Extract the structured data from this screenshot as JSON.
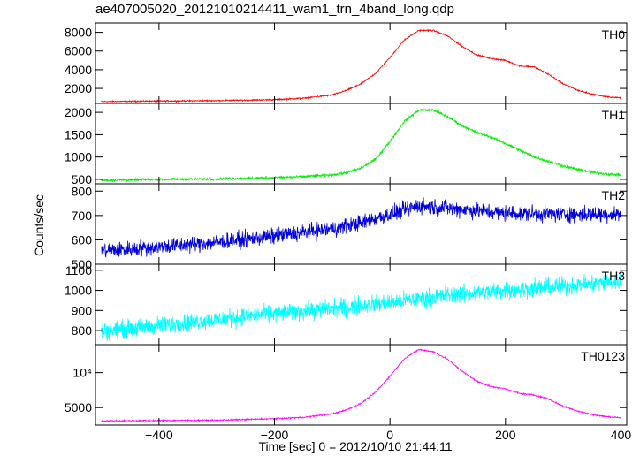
{
  "chart_data": {
    "title": "ae407005020_20121010214411_wam1_trn_4band_long.qdp",
    "xlabel": "Time [sec] 0 = 2012/10/10 21:44:11",
    "ylabel": "Counts/sec",
    "xlim": [
      -510,
      410
    ],
    "xticks": [
      -400,
      -200,
      0,
      200,
      400
    ],
    "grid": false,
    "panels": [
      {
        "type": "line",
        "name": "TH0",
        "color": "#ff0000",
        "ylim": [
          400,
          9000
        ],
        "yticks": [
          2000,
          4000,
          6000,
          8000
        ],
        "ytick_labels": [
          "2000",
          "4000",
          "6000",
          "8000"
        ],
        "noise": 60,
        "x": [
          -500,
          -400,
          -300,
          -200,
          -150,
          -100,
          -75,
          -50,
          -25,
          0,
          25,
          50,
          75,
          100,
          125,
          150,
          175,
          200,
          225,
          250,
          275,
          300,
          325,
          350,
          375,
          400
        ],
        "y": [
          600,
          650,
          700,
          800,
          950,
          1300,
          1800,
          2500,
          3600,
          5300,
          7200,
          8200,
          8200,
          7600,
          6500,
          5600,
          5200,
          5000,
          4400,
          4300,
          3500,
          2500,
          1800,
          1400,
          1100,
          1000
        ]
      },
      {
        "type": "line",
        "name": "TH1",
        "color": "#00ee00",
        "ylim": [
          400,
          2200
        ],
        "yticks": [
          500,
          1000,
          1500,
          2000
        ],
        "ytick_labels": [
          "500",
          "1000",
          "1500",
          "2000"
        ],
        "noise": 25,
        "x": [
          -500,
          -400,
          -300,
          -200,
          -150,
          -100,
          -75,
          -50,
          -25,
          0,
          25,
          50,
          75,
          100,
          125,
          150,
          175,
          200,
          225,
          250,
          275,
          300,
          325,
          350,
          375,
          400
        ],
        "y": [
          480,
          500,
          510,
          540,
          560,
          600,
          650,
          750,
          950,
          1350,
          1800,
          2050,
          2050,
          1900,
          1700,
          1550,
          1450,
          1300,
          1150,
          1000,
          900,
          800,
          720,
          660,
          620,
          600
        ]
      },
      {
        "type": "line",
        "name": "TH2",
        "color": "#0000dd",
        "ylim": [
          500,
          830
        ],
        "yticks": [
          500,
          600,
          700,
          800
        ],
        "ytick_labels": [
          "500",
          "600",
          "700",
          "800"
        ],
        "noise": 28,
        "x": [
          -500,
          -400,
          -300,
          -200,
          -100,
          -50,
          0,
          50,
          100,
          200,
          300,
          400
        ],
        "y": [
          555,
          570,
          590,
          615,
          645,
          670,
          705,
          740,
          730,
          710,
          705,
          705
        ]
      },
      {
        "type": "line",
        "name": "TH3",
        "color": "#00ffff",
        "ylim": [
          730,
          1130
        ],
        "yticks": [
          800,
          900,
          1000,
          1100
        ],
        "ytick_labels": [
          "800",
          "900",
          "1000",
          "1100"
        ],
        "noise": 38,
        "x": [
          -500,
          -400,
          -300,
          -200,
          -100,
          0,
          100,
          200,
          300,
          400
        ],
        "y": [
          795,
          825,
          855,
          885,
          910,
          940,
          975,
          1000,
          1020,
          1045
        ]
      },
      {
        "type": "line",
        "name": "TH0123",
        "color": "#ff00ff",
        "ylim": [
          2500,
          14000
        ],
        "yticks": [
          5000,
          10000
        ],
        "ytick_labels": [
          "5000",
          "10⁴"
        ],
        "noise": 80,
        "x": [
          -500,
          -400,
          -300,
          -200,
          -150,
          -100,
          -75,
          -50,
          -25,
          0,
          25,
          50,
          75,
          100,
          125,
          150,
          175,
          200,
          225,
          250,
          275,
          300,
          325,
          350,
          375,
          400
        ],
        "y": [
          3100,
          3150,
          3200,
          3400,
          3600,
          4100,
          4700,
          5600,
          7200,
          9500,
          12000,
          13300,
          13000,
          11900,
          10200,
          8800,
          8000,
          7700,
          7000,
          6800,
          6200,
          5200,
          4500,
          4000,
          3700,
          3550
        ]
      }
    ]
  }
}
